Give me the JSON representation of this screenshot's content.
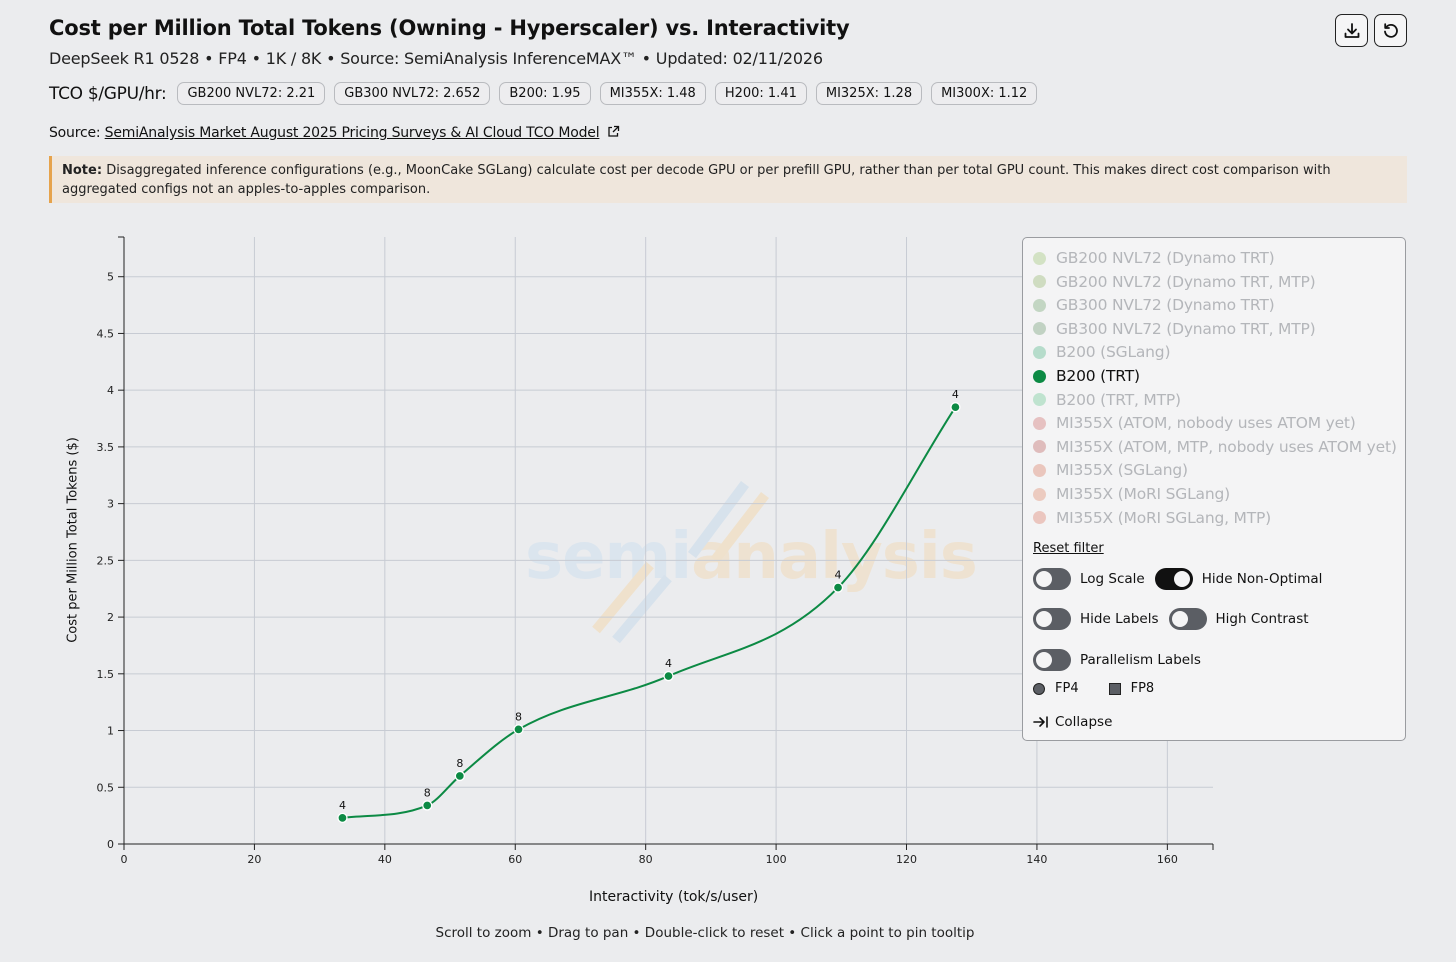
{
  "header": {
    "title": "Cost per Million Total Tokens (Owning - Hyperscaler) vs. Interactivity",
    "subtitle": "DeepSeek R1 0528 • FP4 • 1K / 8K • Source: SemiAnalysis InferenceMAX™ • Updated: 02/11/2026",
    "download_icon": "download-icon",
    "reset_icon": "refresh-icon"
  },
  "tco": {
    "label": "TCO $/GPU/hr:",
    "chips": [
      "GB200 NVL72: 2.21",
      "GB300 NVL72: 2.652",
      "B200: 1.95",
      "MI355X: 1.48",
      "H200: 1.41",
      "MI325X: 1.28",
      "MI300X: 1.12"
    ]
  },
  "source": {
    "prefix": "Source:",
    "link": "SemiAnalysis Market August 2025 Pricing Surveys & AI Cloud TCO Model"
  },
  "note": {
    "bold": "Note:",
    "text": "Disaggregated inference configurations (e.g., MoonCake SGLang) calculate cost per decode GPU or per prefill GPU, rather than per total GPU count. This makes direct cost comparison with aggregated configs not an apples-to-apples comparison."
  },
  "watermark": {
    "part1": "semi",
    "part2": "analysis"
  },
  "legend": {
    "items": [
      {
        "label": "GB200 NVL72 (Dynamo TRT)",
        "color": "#d3e2c4",
        "active": false
      },
      {
        "label": "GB200 NVL72 (Dynamo TRT, MTP)",
        "color": "#cfdcc1",
        "active": false
      },
      {
        "label": "GB300 NVL72 (Dynamo TRT)",
        "color": "#c3d6c3",
        "active": false
      },
      {
        "label": "GB300 NVL72 (Dynamo TRT, MTP)",
        "color": "#c1d2c3",
        "active": false
      },
      {
        "label": "B200 (SGLang)",
        "color": "#b6dccb",
        "active": false
      },
      {
        "label": "B200 (TRT)",
        "color": "#0c8a44",
        "active": true
      },
      {
        "label": "B200 (TRT, MTP)",
        "color": "#bfe3cf",
        "active": false
      },
      {
        "label": "MI355X (ATOM, nobody uses ATOM yet)",
        "color": "#e6c1c1",
        "active": false
      },
      {
        "label": "MI355X (ATOM, MTP, nobody uses ATOM yet)",
        "color": "#dfbcbc",
        "active": false
      },
      {
        "label": "MI355X (SGLang)",
        "color": "#eac6bd",
        "active": false
      },
      {
        "label": "MI355X (MoRI SGLang)",
        "color": "#eccbc0",
        "active": false
      },
      {
        "label": "MI355X (MoRI SGLang, MTP)",
        "color": "#ebc6bf",
        "active": false
      }
    ],
    "reset": "Reset filter",
    "toggles": {
      "log_scale": {
        "label": "Log Scale",
        "on": false
      },
      "hide_non_optimal": {
        "label": "Hide Non-Optimal",
        "on": true
      },
      "hide_labels": {
        "label": "Hide Labels",
        "on": false
      },
      "high_contrast": {
        "label": "High Contrast",
        "on": false
      },
      "parallelism_labels": {
        "label": "Parallelism Labels",
        "on": false
      }
    },
    "precisions": [
      "FP4",
      "FP8"
    ],
    "collapse": "Collapse"
  },
  "hint": "Scroll to zoom • Drag to pan • Double-click to reset • Click a point to pin tooltip",
  "chart_data": {
    "type": "line",
    "xlabel": "Interactivity (tok/s/user)",
    "ylabel": "Cost per Million Total Tokens ($)",
    "xlim": [
      0,
      167
    ],
    "ylim": [
      0,
      5.35
    ],
    "xticks": [
      0,
      20,
      40,
      60,
      80,
      100,
      120,
      140,
      160
    ],
    "yticks": [
      0,
      0.5,
      1,
      1.5,
      2,
      2.5,
      3,
      3.5,
      4,
      4.5,
      5
    ],
    "grid": true,
    "series": [
      {
        "name": "B200 (TRT)",
        "color": "#0c8a44",
        "points": [
          {
            "x": 33.5,
            "y": 0.23,
            "label": "4"
          },
          {
            "x": 46.5,
            "y": 0.34,
            "label": "8"
          },
          {
            "x": 51.5,
            "y": 0.6,
            "label": "8"
          },
          {
            "x": 60.5,
            "y": 1.01,
            "label": "8"
          },
          {
            "x": 83.5,
            "y": 1.48,
            "label": "4"
          },
          {
            "x": 109.5,
            "y": 2.26,
            "label": "4"
          },
          {
            "x": 127.5,
            "y": 3.85,
            "label": "4"
          }
        ]
      }
    ]
  }
}
